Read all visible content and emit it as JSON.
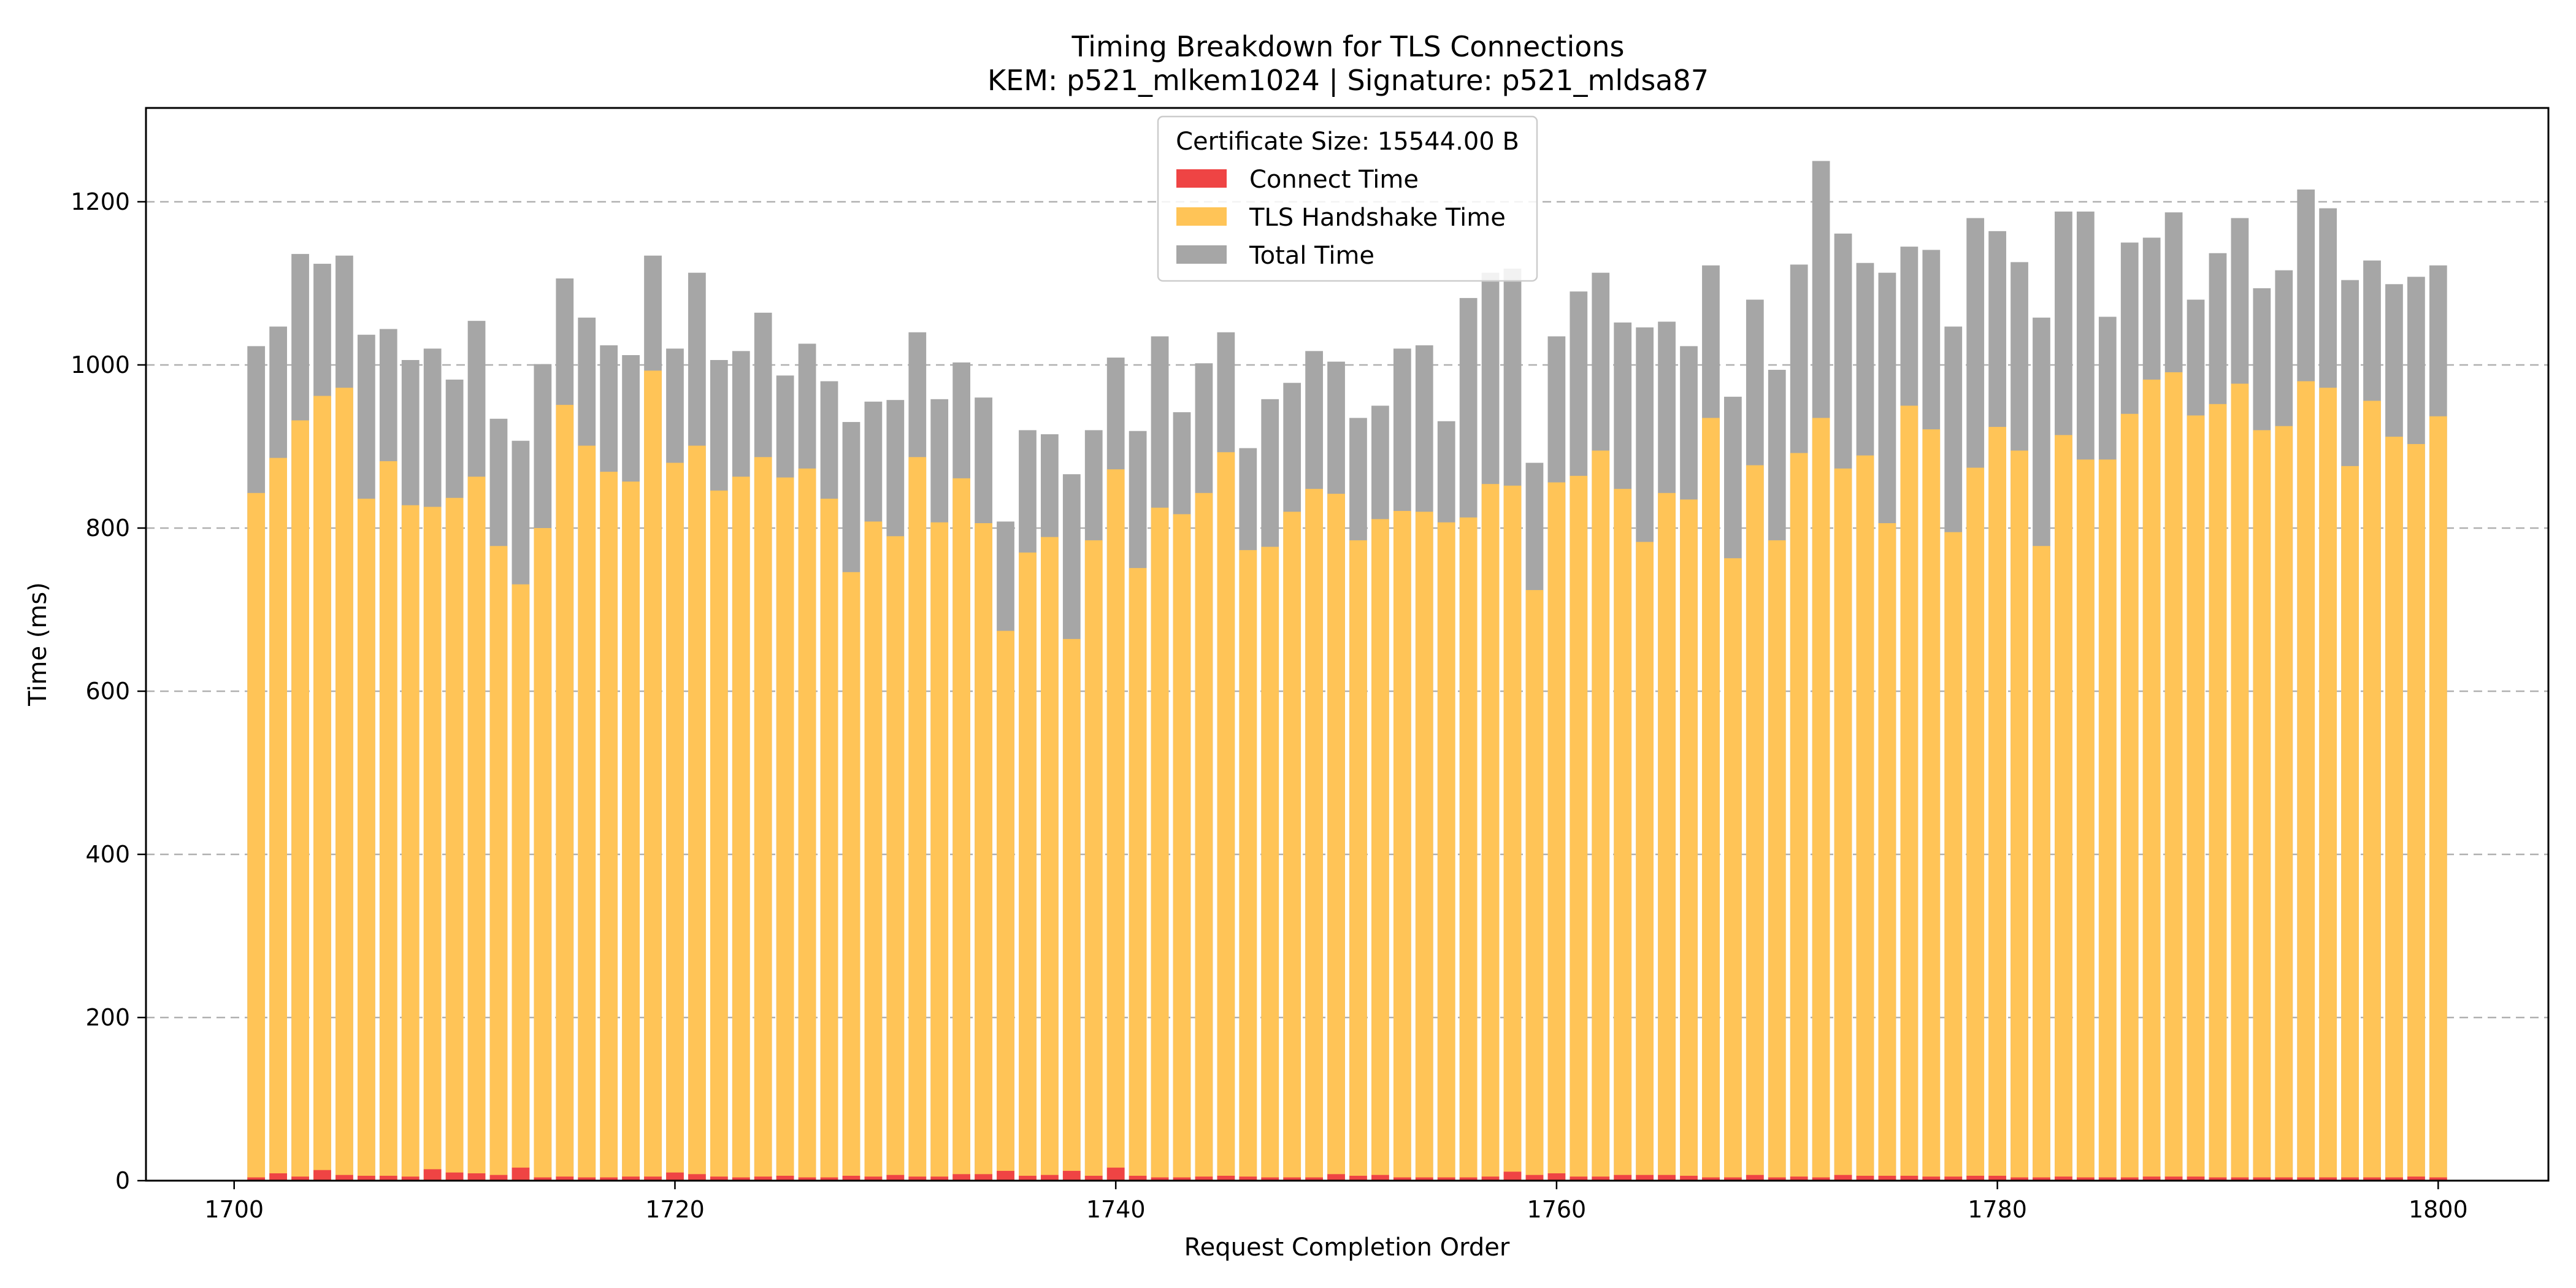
{
  "chart_data": {
    "type": "bar",
    "stacking": "overlaid",
    "title": "Timing Breakdown for TLS Connections",
    "subtitle": "KEM: p521_mlkem1024 | Signature: p521_mldsa87",
    "xlabel": "Request Completion Order",
    "ylabel": "Time (ms)",
    "xlim": [
      1696,
      1805
    ],
    "ylim": [
      0,
      1315
    ],
    "xticks": [
      1700,
      1720,
      1740,
      1760,
      1780,
      1800
    ],
    "yticks": [
      0,
      200,
      400,
      600,
      800,
      1000,
      1200
    ],
    "grid": "y-dashed",
    "legend": {
      "placement": "top-center",
      "title": "Certificate Size: 15544.00 B",
      "entries": [
        "Connect Time",
        "TLS Handshake Time",
        "Total Time"
      ]
    },
    "colors": {
      "connect": "#ef4444",
      "tls": "#ffc457",
      "total": "#a6a6a6"
    },
    "x_start": 1701,
    "total_time": [
      1023,
      1047,
      1136,
      1124,
      1134,
      1037,
      1044,
      1006,
      1020,
      982,
      1054,
      934,
      907,
      1001,
      1106,
      1058,
      1024,
      1012,
      1134,
      1020,
      1113,
      1006,
      1017,
      1064,
      987,
      1026,
      980,
      930,
      955,
      957,
      1040,
      958,
      1003,
      960,
      808,
      920,
      915,
      866,
      920,
      1009,
      919,
      1035,
      942,
      1002,
      1040,
      898,
      958,
      978,
      1017,
      1004,
      935,
      950,
      1020,
      1024,
      931,
      1082,
      1113,
      1118,
      880,
      1035,
      1090,
      1113,
      1052,
      1046,
      1053,
      1023,
      1122,
      961,
      1080,
      994,
      1123,
      1250,
      1161,
      1125,
      1113,
      1145,
      1141,
      1047,
      1180,
      1164,
      1126,
      1058,
      1188,
      1188,
      1059,
      1150,
      1156,
      1187,
      1080,
      1137,
      1180,
      1094,
      1116,
      1215,
      1192,
      1104,
      1128,
      1099,
      1108,
      1122
    ],
    "tls_handshake_time": [
      843,
      886,
      932,
      962,
      972,
      836,
      882,
      828,
      826,
      837,
      863,
      778,
      731,
      800,
      951,
      901,
      869,
      857,
      993,
      880,
      901,
      846,
      863,
      887,
      862,
      873,
      836,
      746,
      808,
      790,
      887,
      807,
      861,
      806,
      674,
      770,
      789,
      664,
      785,
      872,
      751,
      825,
      817,
      843,
      893,
      773,
      777,
      820,
      848,
      842,
      785,
      811,
      821,
      820,
      807,
      813,
      854,
      852,
      724,
      856,
      864,
      895,
      848,
      783,
      843,
      835,
      935,
      763,
      877,
      785,
      892,
      935,
      873,
      889,
      806,
      950,
      921,
      795,
      874,
      924,
      895,
      778,
      914,
      884,
      884,
      940,
      982,
      991,
      938,
      952,
      977,
      920,
      925,
      980,
      972,
      876,
      956,
      912,
      903,
      937
    ],
    "connect_time": [
      4,
      9,
      5,
      13,
      7,
      6,
      6,
      5,
      14,
      10,
      9,
      7,
      16,
      4,
      5,
      4,
      4,
      5,
      5,
      10,
      8,
      5,
      4,
      5,
      6,
      4,
      4,
      6,
      5,
      7,
      5,
      5,
      8,
      8,
      12,
      6,
      7,
      12,
      6,
      16,
      6,
      4,
      4,
      5,
      6,
      5,
      4,
      4,
      4,
      8,
      6,
      7,
      4,
      4,
      4,
      4,
      5,
      11,
      7,
      9,
      5,
      5,
      7,
      7,
      7,
      6,
      4,
      4,
      7,
      4,
      5,
      4,
      7,
      6,
      6,
      6,
      5,
      5,
      6,
      6,
      4,
      4,
      5,
      4,
      4,
      4,
      5,
      5,
      5,
      4,
      4,
      4,
      4,
      4,
      4,
      4,
      4,
      4,
      5,
      4
    ]
  }
}
